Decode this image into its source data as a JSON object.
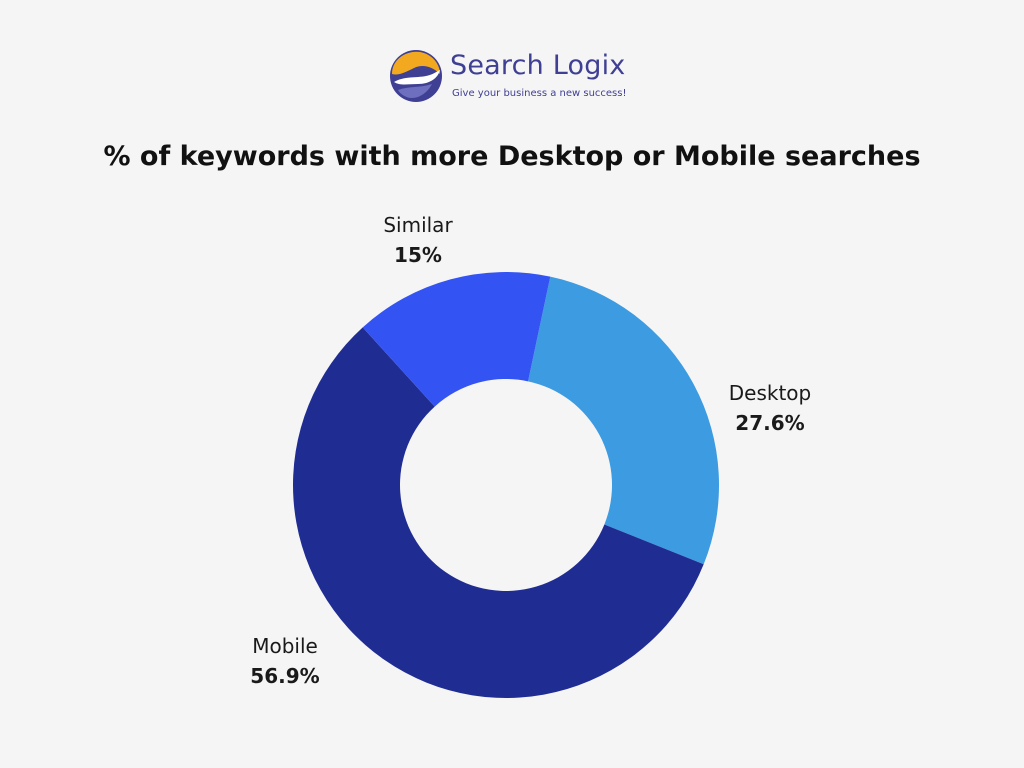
{
  "brand": {
    "name": "Search Logix",
    "tagline": "Give your business a new success!"
  },
  "colors": {
    "background": "#f5f5f5",
    "brand_text": "#3f3f94",
    "logo_orange": "#f2a91f",
    "logo_purple": "#3f3f94"
  },
  "chart_data": {
    "type": "pie",
    "style": "donut",
    "title": "% of keywords with more Desktop or Mobile searches",
    "slices": [
      {
        "name": "Desktop",
        "value": 27.6,
        "label": "27.6%",
        "color": "#3d9be1"
      },
      {
        "name": "Mobile",
        "value": 56.9,
        "label": "56.9%",
        "color": "#1f2d92"
      },
      {
        "name": "Similar",
        "value": 15,
        "label": "15%",
        "color": "#3353f3"
      }
    ],
    "legend": "none"
  }
}
